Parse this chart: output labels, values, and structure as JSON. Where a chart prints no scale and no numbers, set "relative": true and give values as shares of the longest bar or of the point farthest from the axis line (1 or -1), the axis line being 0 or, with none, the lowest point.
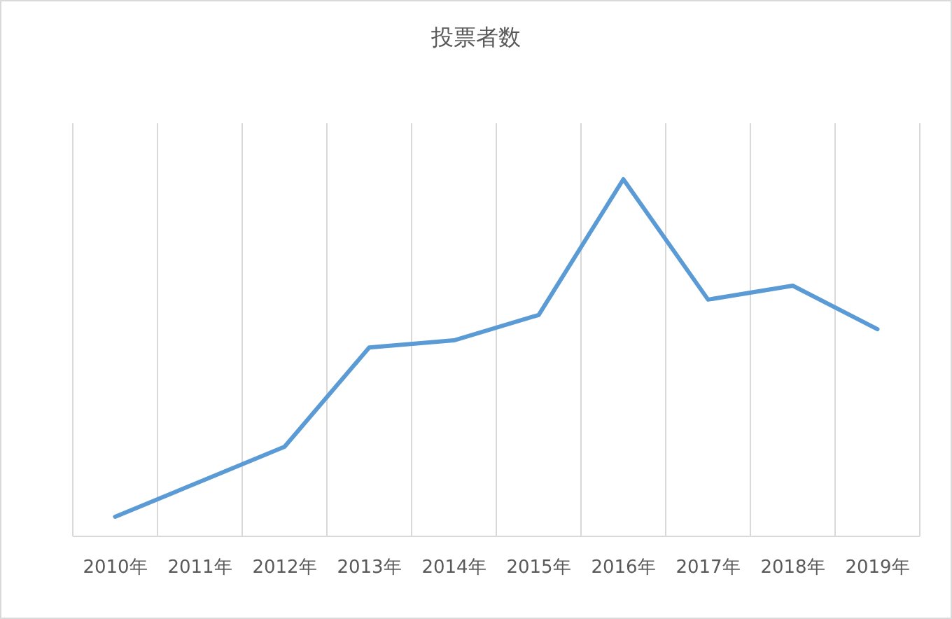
{
  "chart_data": {
    "type": "line",
    "title": "投票者数",
    "relative": true,
    "grid": "x",
    "marker": "none",
    "categories": [
      "2010年",
      "2011年",
      "2012年",
      "2013年",
      "2014年",
      "2015年",
      "2016年",
      "2017年",
      "2018年",
      "2019年"
    ],
    "series": [
      {
        "color": "#5b9bd5",
        "values": [
          0.055,
          0.153,
          0.251,
          0.529,
          0.549,
          0.62,
          1,
          0.663,
          0.702,
          0.58
        ]
      }
    ]
  }
}
